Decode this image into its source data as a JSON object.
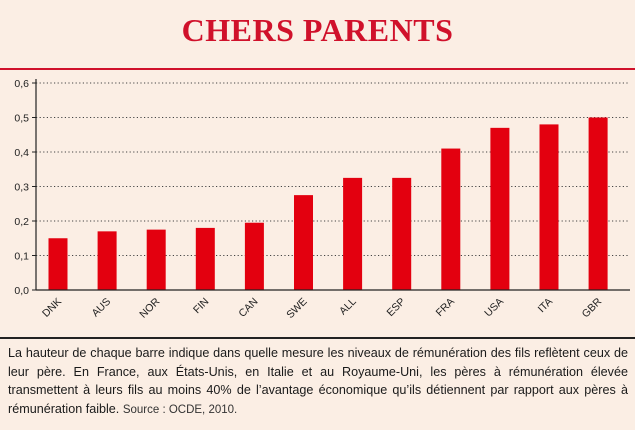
{
  "title": "CHERS PARENTS",
  "caption": "La hauteur de chaque barre indique dans quelle mesure les niveaux de rémunération des fils reflètent ceux de leur père. En France, aux États-Unis, en Italie et au Royaume-Uni, les pères à rémunération élevée transmettent à leurs fils au moins 40% de l’avantage économique qu’ils détiennent par rapport aux pères à rémunération faible.",
  "source": "Source : OCDE, 2010.",
  "colors": {
    "bar": "#e3000f",
    "accent": "#d0112b",
    "background": "#fbeee4",
    "grid": "#444444"
  },
  "chart_data": {
    "type": "bar",
    "title": "",
    "xlabel": "",
    "ylabel": "",
    "categories": [
      "DNK",
      "AUS",
      "NOR",
      "FIN",
      "CAN",
      "SWE",
      "ALL",
      "ESP",
      "FRA",
      "USA",
      "ITA",
      "GBR"
    ],
    "values": [
      0.15,
      0.17,
      0.175,
      0.18,
      0.195,
      0.275,
      0.325,
      0.325,
      0.41,
      0.47,
      0.48,
      0.5
    ],
    "yticks": [
      "0,0",
      "0,1",
      "0,2",
      "0,3",
      "0,4",
      "0,5",
      "0,6"
    ],
    "ylim": [
      0,
      0.6
    ],
    "grid": true,
    "grid_style": "dotted",
    "legend": "none"
  }
}
